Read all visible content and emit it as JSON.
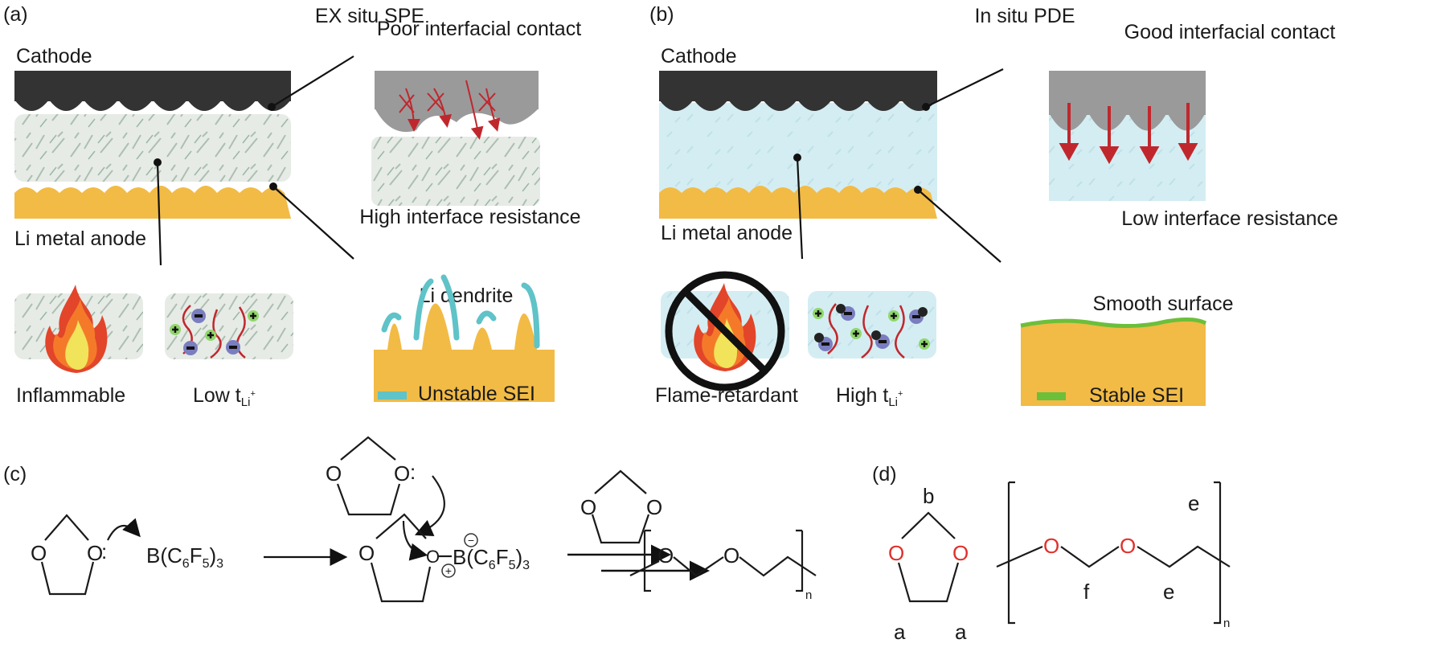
{
  "panel_a": {
    "label": "(a)",
    "title": "EX situ SPE",
    "cathode": "Cathode",
    "anode": "Li metal anode",
    "contact_title": "Poor interfacial contact",
    "contact_caption": "High interface resistance",
    "dendrite_title": "Li dendrite",
    "flame_caption": "Inflammable",
    "t_caption": "Low t",
    "t_sub": "Li",
    "t_sup": "+",
    "legend": "Unstable SEI",
    "legend_color": "#5fc3c8"
  },
  "panel_b": {
    "label": "(b)",
    "title": "In situ PDE",
    "cathode": "Cathode",
    "anode": "Li metal anode",
    "contact_title": "Good interfacial contact",
    "contact_caption": "Low interface resistance",
    "surface_title": "Smooth surface",
    "flame_caption": "Flame-retardant",
    "t_caption": "High t",
    "t_sub": "Li",
    "t_sup": "+",
    "legend": "Stable SEI",
    "legend_color": "#6cbf3a"
  },
  "panel_c": {
    "label": "(c)",
    "atom_o": "O",
    "lone_pair": ":",
    "catalyst": {
      "p1": "B(C",
      "s1": "6",
      "p2": "F",
      "s2": "5",
      "p3": ")",
      "s3": "3"
    },
    "minus": "−",
    "plus": "+",
    "repeat": "n"
  },
  "panel_d": {
    "label": "(d)",
    "atom_o": "O",
    "peaks": {
      "b": "b",
      "a": "a",
      "f": "f",
      "e": "e"
    },
    "repeat": "n",
    "o_color": "#e0302a"
  },
  "colors": {
    "cathode": "#333333",
    "anode": "#f2bb45",
    "ex_situ_electrolyte": "#dfe6df",
    "in_situ_electrolyte": "#d6eef3",
    "arrow_red": "#c0272d",
    "flame_outer": "#e2452a",
    "flame_mid": "#f47a2a",
    "flame_inner": "#f1e35a"
  }
}
